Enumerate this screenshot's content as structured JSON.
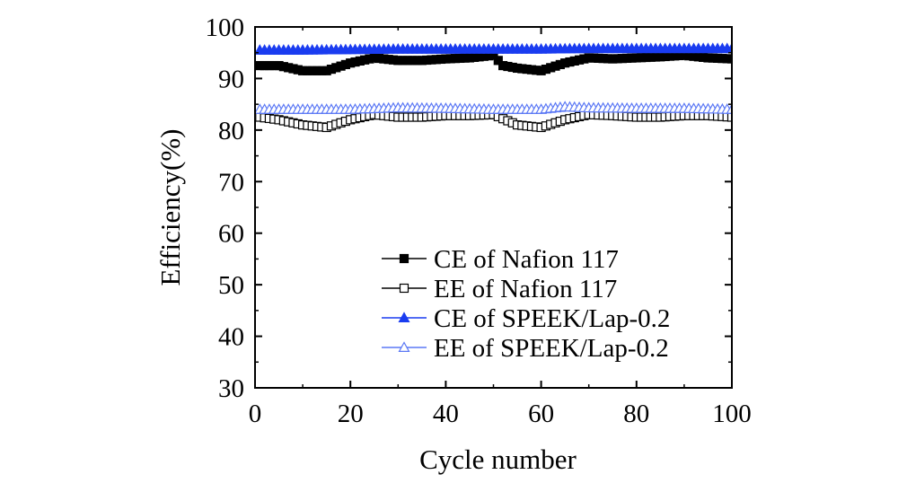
{
  "chart_data": {
    "type": "line",
    "title": "",
    "xlabel": "Cycle number",
    "ylabel": "Efficiency(%)",
    "xlim": [
      0,
      100
    ],
    "ylim": [
      30,
      100
    ],
    "xticks": [
      0,
      20,
      40,
      60,
      80,
      100
    ],
    "yticks": [
      30,
      40,
      50,
      60,
      70,
      80,
      90,
      100
    ],
    "grid": false,
    "legend_position": "bottom-right",
    "series": [
      {
        "name": "CE of Nafion 117",
        "marker": "square-filled",
        "color": "#000000",
        "x": [
          1,
          5,
          10,
          15,
          20,
          25,
          30,
          35,
          40,
          45,
          50,
          52,
          55,
          60,
          65,
          70,
          75,
          80,
          85,
          90,
          95,
          100
        ],
        "y": [
          92.5,
          92.5,
          91.5,
          91.5,
          93.0,
          94.0,
          93.5,
          93.5,
          93.8,
          94.0,
          94.5,
          92.5,
          92.0,
          91.5,
          93.0,
          94.0,
          93.8,
          94.0,
          94.2,
          94.5,
          94.0,
          93.8
        ]
      },
      {
        "name": "EE of Nafion 117",
        "marker": "square-open",
        "color": "#000000",
        "x": [
          1,
          5,
          10,
          15,
          20,
          25,
          30,
          35,
          40,
          45,
          50,
          55,
          60,
          65,
          70,
          75,
          80,
          85,
          90,
          95,
          100
        ],
        "y": [
          82.5,
          82.0,
          81.0,
          80.5,
          82.0,
          83.0,
          82.5,
          82.5,
          82.8,
          82.8,
          83.0,
          81.0,
          80.5,
          82.0,
          83.0,
          82.8,
          82.5,
          82.5,
          82.8,
          82.8,
          82.5
        ]
      },
      {
        "name": "CE of SPEEK/Lap-0.2",
        "marker": "triangle-filled",
        "color": "#1a3cf0",
        "x": [
          1,
          10,
          20,
          30,
          40,
          50,
          60,
          70,
          80,
          90,
          100
        ],
        "y": [
          95.5,
          95.5,
          95.6,
          95.7,
          95.7,
          95.7,
          95.7,
          95.8,
          95.8,
          95.8,
          95.8
        ]
      },
      {
        "name": "EE of SPEEK/Lap-0.2",
        "marker": "triangle-open",
        "color": "#5b78f5",
        "x": [
          1,
          10,
          20,
          30,
          40,
          50,
          60,
          65,
          70,
          80,
          90,
          100
        ],
        "y": [
          84.0,
          84.0,
          84.0,
          84.3,
          84.2,
          84.0,
          84.0,
          84.5,
          84.3,
          84.2,
          84.2,
          84.0
        ]
      }
    ]
  }
}
